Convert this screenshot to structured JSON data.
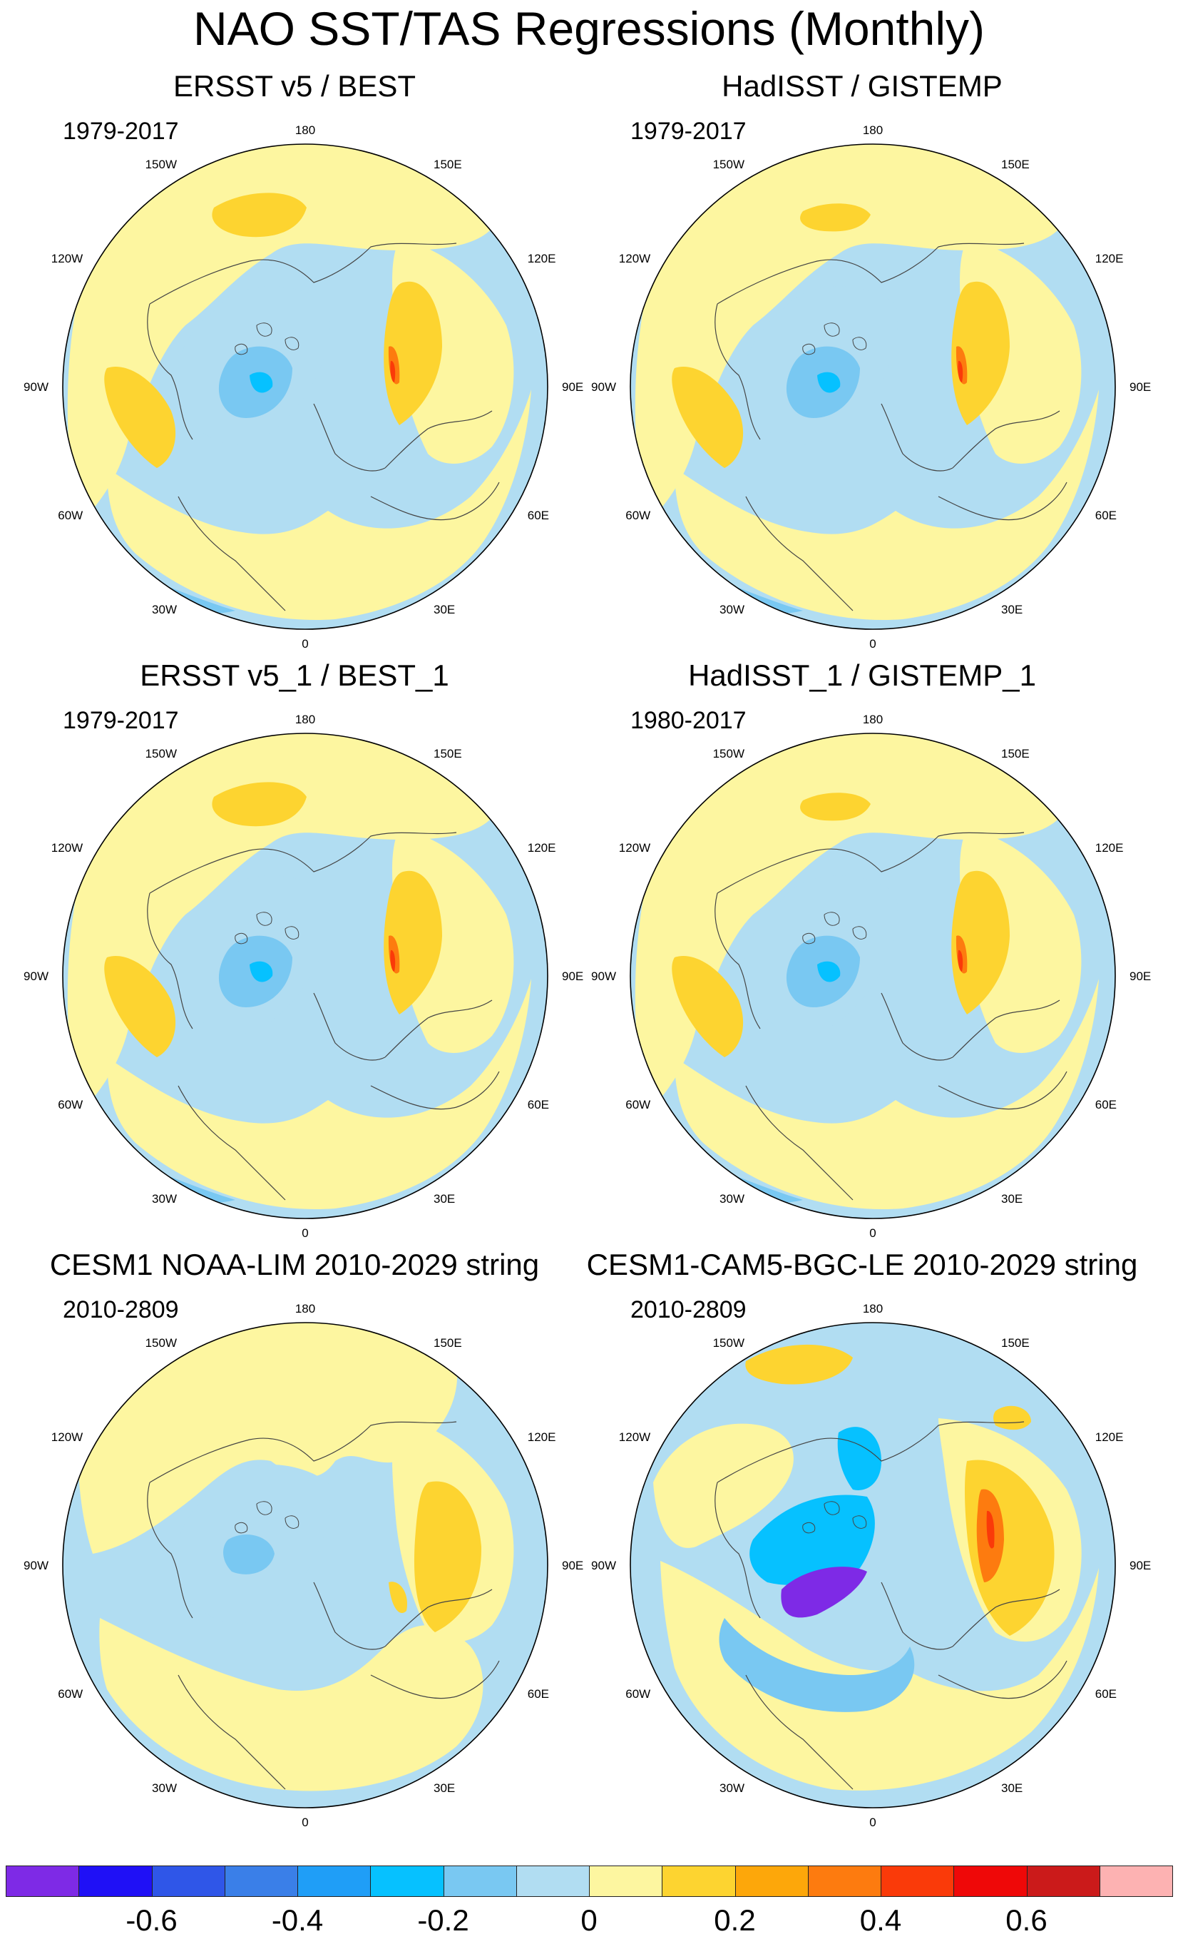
{
  "figure_title": "NAO SST/TAS Regressions (Monthly)",
  "longitude_labels": [
    "180",
    "150E",
    "120E",
    "90E",
    "60E",
    "30E",
    "0",
    "30W",
    "60W",
    "90W",
    "120W",
    "150W"
  ],
  "panels": [
    {
      "id": "p1",
      "title": "ERSST v5 / BEST",
      "period": "1979-2017",
      "pattern": "obs1"
    },
    {
      "id": "p2",
      "title": "HadISST / GISTEMP",
      "period": "1979-2017",
      "pattern": "obs2"
    },
    {
      "id": "p3",
      "title": "ERSST v5_1 / BEST_1",
      "period": "1979-2017",
      "pattern": "obs1"
    },
    {
      "id": "p4",
      "title": "HadISST_1 / GISTEMP_1",
      "period": "1980-2017",
      "pattern": "obs2"
    },
    {
      "id": "p5",
      "title": "CESM1 NOAA-LIM 2010-2029 string",
      "period": "2010-2809",
      "pattern": "lim"
    },
    {
      "id": "p6",
      "title": "CESM1-CAM5-BGC-LE 2010-2029 string",
      "period": "2010-2809",
      "pattern": "bgc"
    }
  ],
  "colorbar": {
    "colors": [
      "#7e2ae6",
      "#1f10f6",
      "#2f56e8",
      "#3a7fe8",
      "#1f9ef7",
      "#06c1ff",
      "#79c8f2",
      "#b1ddf2",
      "#fdf6a0",
      "#fdd430",
      "#fda70a",
      "#fd7b0f",
      "#fa3a09",
      "#ef0808",
      "#cb1a1a",
      "#fdb2b2"
    ],
    "tick_labels": [
      "-0.6",
      "-0.4",
      "-0.2",
      "0",
      "0.2",
      "0.4",
      "0.6"
    ]
  }
}
